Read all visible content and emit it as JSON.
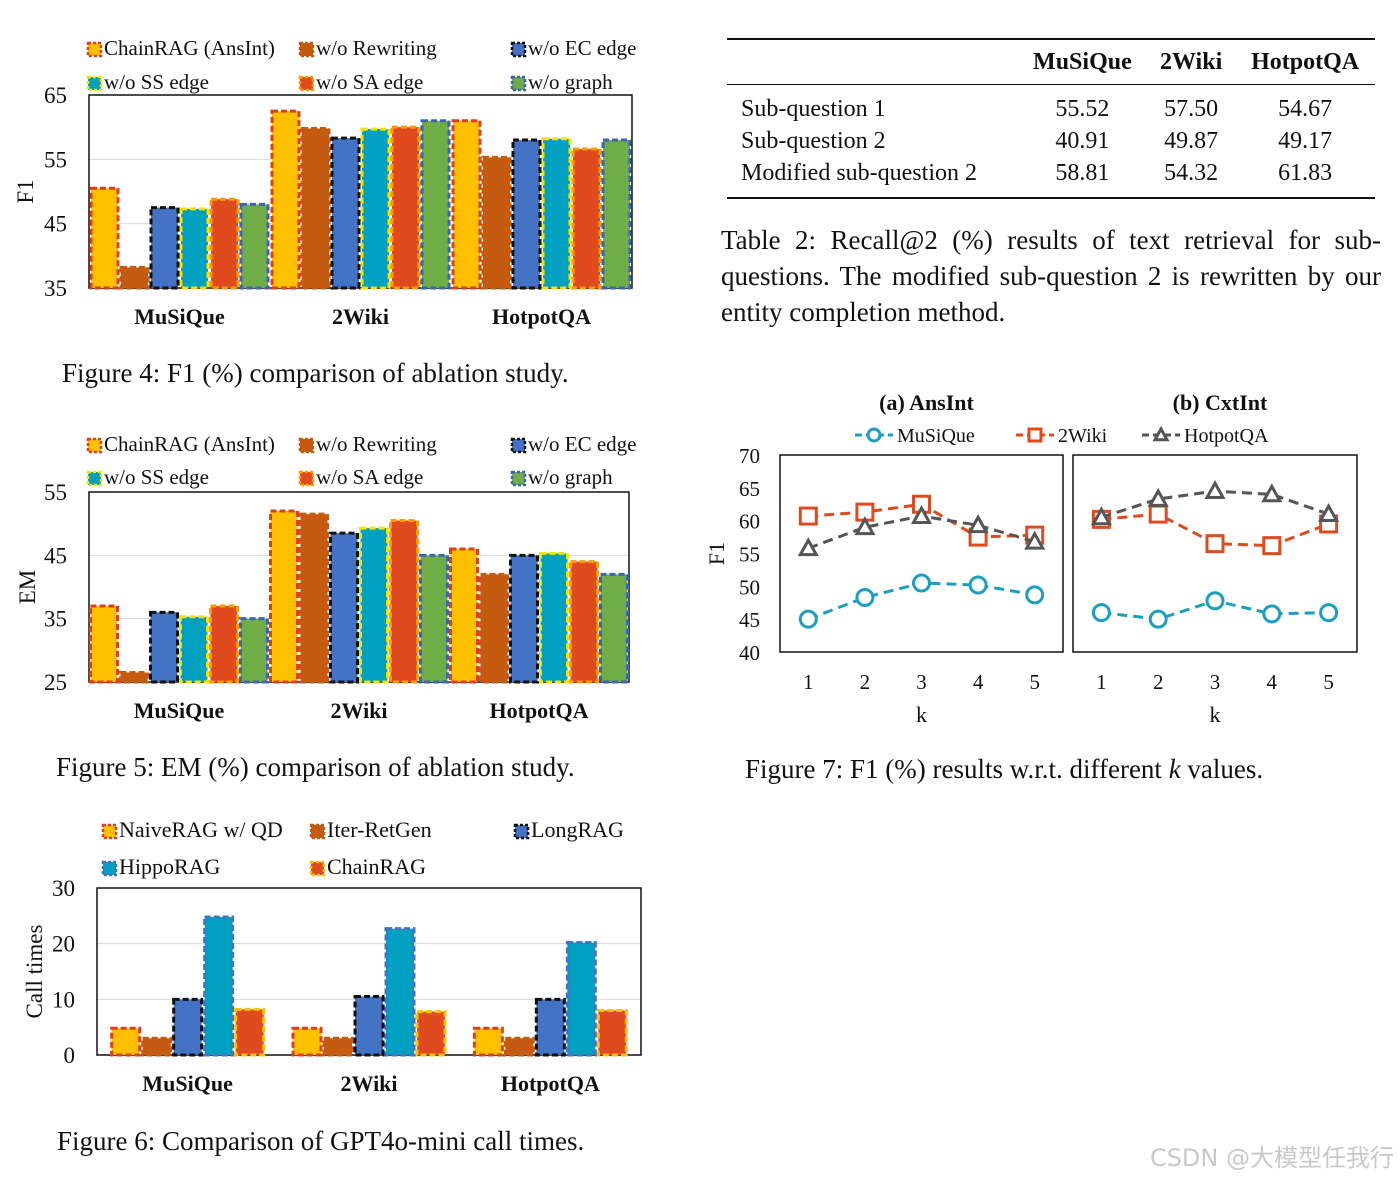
{
  "colors": {
    "yellow": "#FFC000",
    "brown": "#C55A11",
    "blue": "#4472C4",
    "cyan": "#00A0C0",
    "red": "#E04A1F",
    "green": "#70AD47",
    "border_red": "#E03C1E",
    "border_black": "#111111",
    "border_yellow": "#F5E400",
    "border_orange": "#FF9A00",
    "border_blue": "#3C64B4",
    "line_cyan": "#1A9FC0",
    "line_red": "#E04A1F",
    "line_gray": "#555555"
  },
  "figure4": {
    "caption": "Figure 4: F1 (%) comparison of ablation study.",
    "chart_data": {
      "type": "bar",
      "title": "",
      "ylabel": "F1",
      "xlabel": "",
      "ylim": [
        35,
        65
      ],
      "yticks": [
        "35",
        "45",
        "55",
        "65"
      ],
      "categories": [
        "MuSiQue",
        "2Wiki",
        "HotpotQA"
      ],
      "series": [
        {
          "name": "ChainRAG (AnsInt)",
          "values": [
            50.5,
            62.5,
            61.0
          ]
        },
        {
          "name": "w/o Rewriting",
          "values": [
            38.2,
            59.8,
            55.3
          ]
        },
        {
          "name": "w/o EC edge",
          "values": [
            47.5,
            58.3,
            58.0
          ]
        },
        {
          "name": "w/o SS edge",
          "values": [
            47.3,
            59.7,
            58.2
          ]
        },
        {
          "name": "w/o SA edge",
          "values": [
            48.8,
            60.0,
            56.6
          ]
        },
        {
          "name": "w/o graph",
          "values": [
            48.0,
            61.0,
            58.0
          ]
        }
      ]
    }
  },
  "figure5": {
    "caption": "Figure 5: EM (%) comparison of ablation study.",
    "chart_data": {
      "type": "bar",
      "title": "",
      "ylabel": "EM",
      "xlabel": "",
      "ylim": [
        25,
        55
      ],
      "yticks": [
        "25",
        "35",
        "45",
        "55"
      ],
      "categories": [
        "MuSiQue",
        "2Wiki",
        "HotpotQA"
      ],
      "series": [
        {
          "name": "ChainRAG (AnsInt)",
          "values": [
            37.0,
            52.0,
            46.0
          ]
        },
        {
          "name": "w/o Rewriting",
          "values": [
            26.5,
            51.5,
            42.0
          ]
        },
        {
          "name": "w/o EC edge",
          "values": [
            36.0,
            48.5,
            45.0
          ]
        },
        {
          "name": "w/o SS edge",
          "values": [
            35.3,
            49.3,
            45.3
          ]
        },
        {
          "name": "w/o SA edge",
          "values": [
            37.0,
            50.5,
            44.0
          ]
        },
        {
          "name": "w/o graph",
          "values": [
            35.0,
            45.0,
            42.0
          ]
        }
      ]
    }
  },
  "figure6": {
    "caption": "Figure 6: Comparison of GPT4o-mini call times.",
    "chart_data": {
      "type": "bar",
      "title": "",
      "ylabel": "Call times",
      "xlabel": "",
      "ylim": [
        0,
        30
      ],
      "yticks": [
        "0",
        "10",
        "20",
        "30"
      ],
      "categories": [
        "MuSiQue",
        "2Wiki",
        "HotpotQA"
      ],
      "series": [
        {
          "name": "NaiveRAG w/ QD",
          "values": [
            4.8,
            4.8,
            4.8
          ]
        },
        {
          "name": "Iter-RetGen",
          "values": [
            3.0,
            3.0,
            3.0
          ]
        },
        {
          "name": "LongRAG",
          "values": [
            10.0,
            10.5,
            10.0
          ]
        },
        {
          "name": "HippoRAG",
          "values": [
            24.8,
            22.7,
            20.2
          ]
        },
        {
          "name": "ChainRAG",
          "values": [
            8.2,
            7.8,
            8.0
          ]
        }
      ]
    }
  },
  "table2": {
    "columns": [
      "",
      "MuSiQue",
      "2Wiki",
      "HotpotQA"
    ],
    "rows": [
      {
        "label": "Sub-question 1",
        "values": [
          "55.52",
          "57.50",
          "54.67"
        ]
      },
      {
        "label": "Sub-question 2",
        "values": [
          "40.91",
          "49.87",
          "49.17"
        ]
      },
      {
        "label": "Modified sub-question 2",
        "values": [
          "58.81",
          "54.32",
          "61.83"
        ]
      }
    ],
    "caption": "Table 2: Recall@2 (%) results of text retrieval for sub-questions. The modified sub-question 2 is rewritten by our entity completion method."
  },
  "figure7": {
    "caption_prefix": "Figure 7: F1 (%) results w.r.t. different ",
    "caption_k": "k",
    "caption_suffix": " values.",
    "chart_data": [
      {
        "type": "line",
        "title": "(a) AnsInt",
        "xlabel": "k",
        "ylabel": "F1",
        "x": [
          1,
          2,
          3,
          4,
          5
        ],
        "xticks": [
          "1",
          "2",
          "3",
          "4",
          "5"
        ],
        "ylim": [
          40,
          70
        ],
        "yticks": [
          "40",
          "45",
          "50",
          "55",
          "60",
          "65",
          "70"
        ],
        "series": [
          {
            "name": "MuSiQue",
            "values": [
              45.0,
              48.3,
              50.5,
              50.2,
              48.7
            ]
          },
          {
            "name": "2Wiki",
            "values": [
              60.7,
              61.3,
              62.5,
              57.5,
              57.8
            ]
          },
          {
            "name": "HotpotQA",
            "values": [
              55.8,
              59.0,
              60.7,
              59.3,
              56.8
            ]
          }
        ]
      },
      {
        "type": "line",
        "title": "(b) CxtInt",
        "xlabel": "k",
        "ylabel": "",
        "x": [
          1,
          2,
          3,
          4,
          5
        ],
        "xticks": [
          "1",
          "2",
          "3",
          "4",
          "5"
        ],
        "ylim": [
          40,
          70
        ],
        "series": [
          {
            "name": "MuSiQue",
            "values": [
              46.0,
              45.0,
              47.8,
              45.8,
              46.0
            ]
          },
          {
            "name": "2Wiki",
            "values": [
              60.2,
              61.0,
              56.5,
              56.2,
              59.5
            ]
          },
          {
            "name": "HotpotQA",
            "values": [
              60.5,
              63.3,
              64.5,
              64.0,
              61.0
            ]
          }
        ]
      }
    ]
  },
  "watermark": "CSDN @大模型任我行"
}
